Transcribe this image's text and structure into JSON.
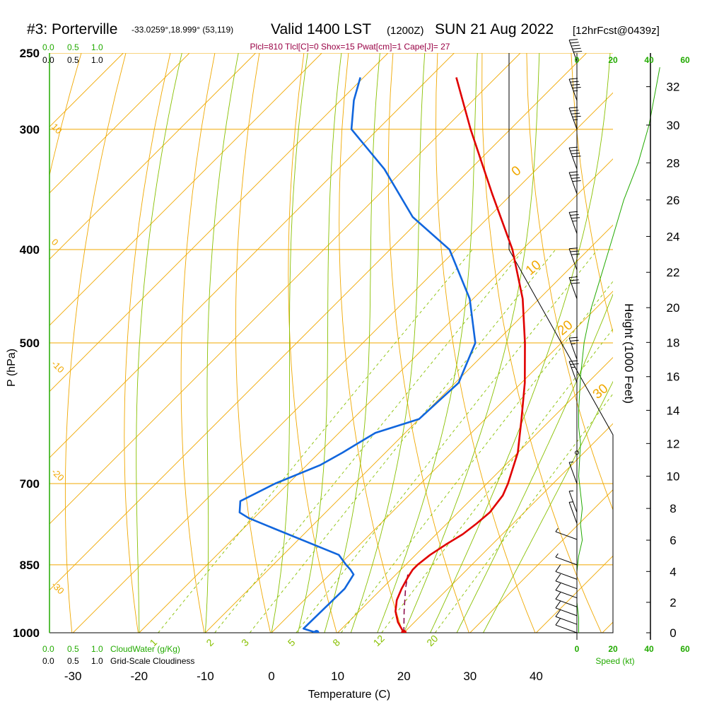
{
  "header": {
    "station": "#3: Porterville",
    "coords": "-33.0259°,18.999° (53,119)",
    "valid_main": "Valid 1400 LST",
    "valid_z": "(1200Z)",
    "date": "SUN 21 Aug 2022",
    "fcst": "[12hrFcst@0439z]"
  },
  "indices": "Plcl=810 Tlcl[C]=0 Shox=15 Pwat[cm]=1 Cape[J]= 27",
  "cloudwater_ticks": [
    "0.0",
    "0.5",
    "1.0"
  ],
  "cloudiness_ticks": [
    "0.0",
    "0.5",
    "1.0"
  ],
  "cloudwater_label": "CloudWater (g/Kg)",
  "cloudiness_label": "Grid-Scale Cloudiness",
  "speed_label": "Speed (kt)",
  "speed_ticks": [
    "0",
    "20",
    "40",
    "60"
  ],
  "colors": {
    "temperature": "#e00000",
    "dewpoint": "#1166dd",
    "isotherm": "#f0a800",
    "dry_adiabat": "#f0a800",
    "moist_adiabat": "#88c000",
    "mixing_ratio": "#88c000",
    "cloud": "#22aa00",
    "parcel": "#880044"
  },
  "chart_data": {
    "type": "skew-t",
    "xlabel": "Temperature (C)",
    "ylabel": "P (hPa)",
    "y2label": "Height (1000 Feet)",
    "x_ticks": [
      -30,
      -20,
      -10,
      0,
      10,
      20,
      30,
      40
    ],
    "p_ticks": [
      250,
      300,
      400,
      500,
      700,
      850,
      1000
    ],
    "height_ticks": [
      0,
      2,
      4,
      6,
      8,
      10,
      12,
      14,
      16,
      18,
      20,
      22,
      24,
      26,
      28,
      30,
      32
    ],
    "xlim": [
      -33,
      36
    ],
    "plim": [
      250,
      1000
    ],
    "skew_degrees": 45,
    "theta_labels": [
      10,
      20,
      30
    ],
    "theta_e_labels_top": [
      "0",
      "10",
      "20",
      "30"
    ],
    "theta_e_labels_left": [
      "10",
      "0",
      "-10",
      "-20",
      "-30"
    ],
    "mixing_ratio_labels": [
      "1",
      "2",
      "3",
      "5",
      "8",
      "12",
      "20"
    ],
    "temperature": {
      "p": [
        1000,
        975,
        950,
        925,
        900,
        875,
        860,
        850,
        830,
        810,
        790,
        770,
        750,
        720,
        700,
        650,
        600,
        550,
        500,
        450,
        400,
        350,
        300,
        265
      ],
      "t": [
        20.0,
        17.5,
        15.5,
        14.0,
        13.0,
        12.2,
        11.8,
        11.8,
        12.2,
        13.0,
        14.0,
        14.5,
        14.8,
        14.2,
        13.2,
        10.0,
        5.5,
        0.5,
        -5.5,
        -12.5,
        -21.5,
        -33.0,
        -46.0,
        -56.0
      ]
    },
    "dewpoint": {
      "p": [
        1000,
        990,
        900,
        870,
        860,
        850,
        830,
        780,
        760,
        750,
        730,
        700,
        670,
        650,
        620,
        600,
        550,
        500,
        450,
        400,
        370,
        330,
        300,
        280,
        265
      ],
      "t": [
        6.8,
        4.2,
        4.4,
        3.6,
        2.4,
        1.0,
        -1.6,
        -15.2,
        -20.8,
        -23.0,
        -24.6,
        -22.0,
        -18.0,
        -16.5,
        -14.5,
        -10.0,
        -9.5,
        -13.0,
        -20.5,
        -31.0,
        -41.5,
        -53.0,
        -64.0,
        -68.0,
        -70.5
      ]
    },
    "parcel": {
      "p": [
        1000,
        950,
        900,
        870
      ],
      "t": [
        20.0,
        16.8,
        13.6,
        11.8
      ]
    },
    "surface_temperature": 20.0,
    "surface_dewpoint": 6.8,
    "tropopause_hPa": 400,
    "wind_speed_profile": {
      "height_kft": [
        0,
        1,
        2,
        3,
        4,
        5,
        6,
        7,
        8,
        10,
        12,
        13,
        14,
        16,
        18,
        20,
        22,
        24,
        26,
        28,
        30,
        32,
        33
      ],
      "speed_kt": [
        1,
        1,
        0,
        0,
        0,
        1,
        3,
        2,
        3,
        1,
        2,
        1,
        1,
        2,
        4,
        8,
        14,
        20,
        26,
        34,
        40,
        44,
        46
      ]
    },
    "barbs": {
      "p": [
        1000,
        980,
        960,
        940,
        920,
        900,
        880,
        850,
        800,
        770,
        750,
        700,
        650,
        550,
        520,
        450,
        420,
        385,
        350,
        330,
        300,
        280,
        255
      ],
      "speed_kt": [
        10,
        10,
        10,
        10,
        10,
        10,
        10,
        5,
        5,
        5,
        5,
        5,
        0,
        25,
        25,
        30,
        30,
        35,
        40,
        40,
        45,
        45,
        50
      ]
    }
  }
}
